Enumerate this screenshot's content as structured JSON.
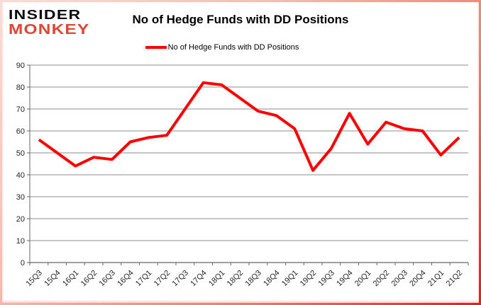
{
  "header": {
    "logo_line1": "INSIDER",
    "logo_line2": "MONKEY",
    "title": "No of Hedge Funds with DD Positions"
  },
  "legend": {
    "label": "No of Hedge Funds with DD Positions"
  },
  "chart_data": {
    "type": "line",
    "title": "No of Hedge Funds with DD Positions",
    "series": [
      {
        "name": "No of Hedge Funds with DD Positions",
        "values": [
          56,
          50,
          44,
          48,
          47,
          55,
          57,
          58,
          70,
          82,
          81,
          75,
          69,
          67,
          61,
          42,
          52,
          68,
          54,
          64,
          61,
          60,
          49,
          57
        ]
      }
    ],
    "categories": [
      "15Q3",
      "15Q4",
      "16Q1",
      "16Q2",
      "16Q3",
      "16Q4",
      "17Q1",
      "17Q2",
      "17Q3",
      "17Q4",
      "18Q1",
      "18Q2",
      "18Q3",
      "18Q4",
      "19Q1",
      "19Q2",
      "19Q3",
      "19Q4",
      "20Q1",
      "20Q2",
      "20Q3",
      "20Q4",
      "21Q1",
      "21Q2"
    ],
    "ylim": [
      0,
      90
    ],
    "ytick_interval": 10,
    "ytick_labels": [
      "0",
      "10",
      "20",
      "30",
      "40",
      "50",
      "60",
      "70",
      "80",
      "90"
    ],
    "grid": true,
    "legend_position": "top",
    "xlabel": "",
    "ylabel": ""
  },
  "colors": {
    "line": "#ff0000",
    "grid": "#8c8c8c",
    "axis": "#666666",
    "tick_label": "#262626",
    "logo_red": "#de4733",
    "logo_black": "#0d0d0d",
    "frame_start": "#fbdcd6",
    "frame_end": "#ff1408"
  }
}
